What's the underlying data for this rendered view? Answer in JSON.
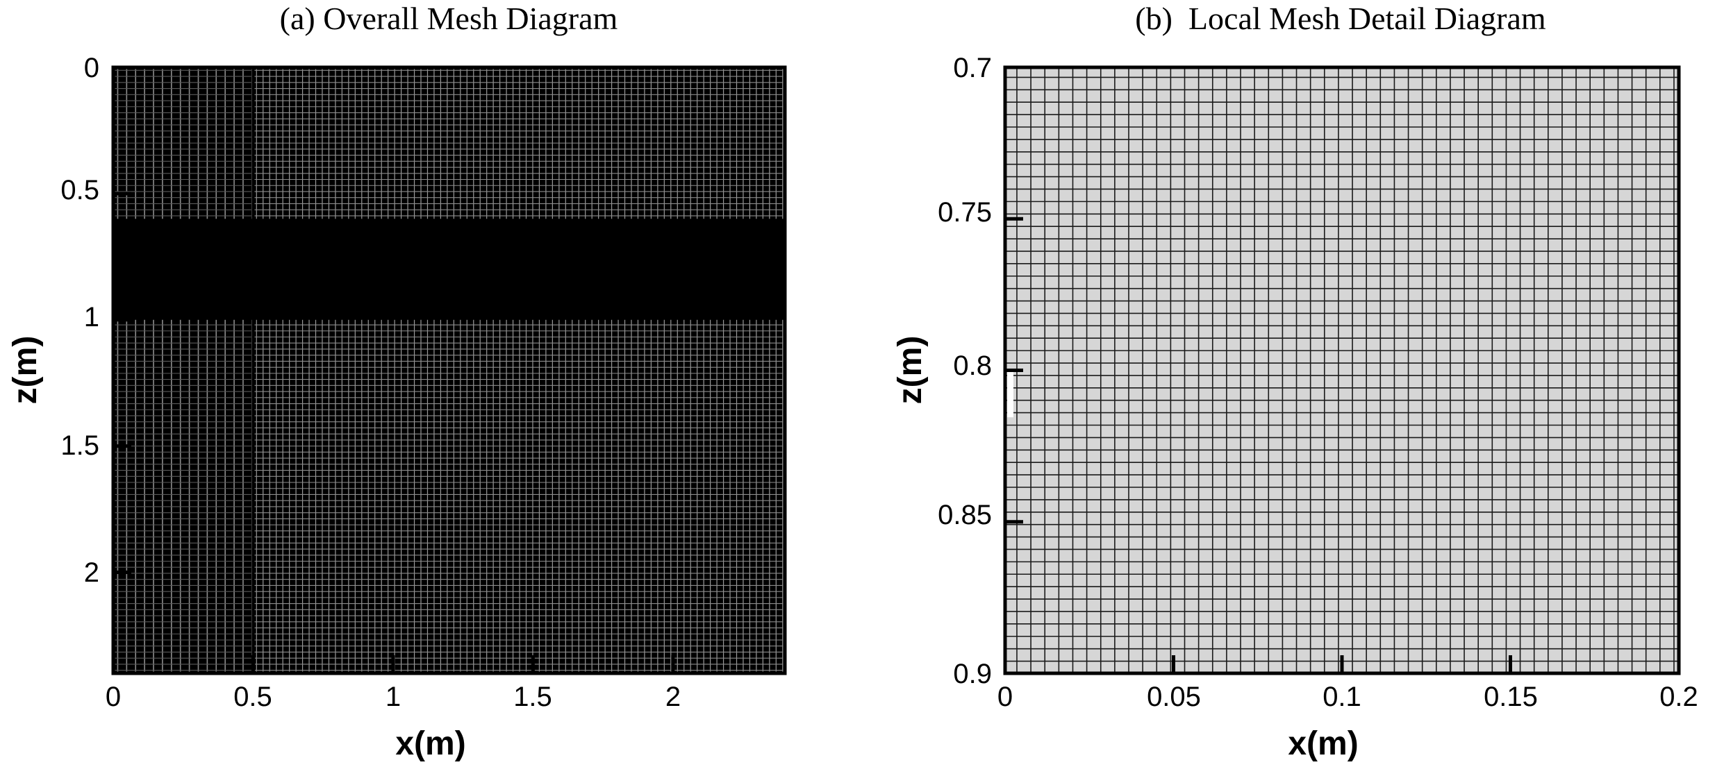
{
  "chart_data": [
    {
      "type": "mesh",
      "title": "(a) Overall Mesh Diagram",
      "xlabel": "x(m)",
      "ylabel": "z(m)",
      "xlim": [
        0,
        2.4
      ],
      "ylim": [
        0,
        2.4
      ],
      "y_inverted": true,
      "x_ticks": [
        {
          "value": 0,
          "label": "0"
        },
        {
          "value": 0.5,
          "label": "0.5"
        },
        {
          "value": 1,
          "label": "1"
        },
        {
          "value": 1.5,
          "label": "1.5"
        },
        {
          "value": 2,
          "label": "2"
        }
      ],
      "y_ticks": [
        {
          "value": 0,
          "label": "0"
        },
        {
          "value": 0.5,
          "label": "0.5"
        },
        {
          "value": 1,
          "label": "1"
        },
        {
          "value": 1.5,
          "label": "1.5"
        },
        {
          "value": 2,
          "label": "2"
        }
      ],
      "mesh_refinement": {
        "x_fine_region": [
          0,
          0.5
        ],
        "z_fine_region": [
          0.6,
          1.0
        ]
      }
    },
    {
      "type": "mesh",
      "title": "(b)  Local Mesh Detail Diagram",
      "xlabel": "x(m)",
      "ylabel": "z(m)",
      "xlim": [
        0,
        0.2
      ],
      "ylim": [
        0.7,
        0.9
      ],
      "y_inverted": true,
      "x_ticks": [
        {
          "value": 0,
          "label": "0"
        },
        {
          "value": 0.05,
          "label": "0.05"
        },
        {
          "value": 0.1,
          "label": "0.1"
        },
        {
          "value": 0.15,
          "label": "0.15"
        },
        {
          "value": 0.2,
          "label": "0.2"
        }
      ],
      "y_ticks": [
        {
          "value": 0.7,
          "label": "0.7"
        },
        {
          "value": 0.75,
          "label": "0.75"
        },
        {
          "value": 0.8,
          "label": "0.8"
        },
        {
          "value": 0.85,
          "label": "0.85"
        },
        {
          "value": 0.9,
          "label": "0.9"
        }
      ]
    }
  ]
}
